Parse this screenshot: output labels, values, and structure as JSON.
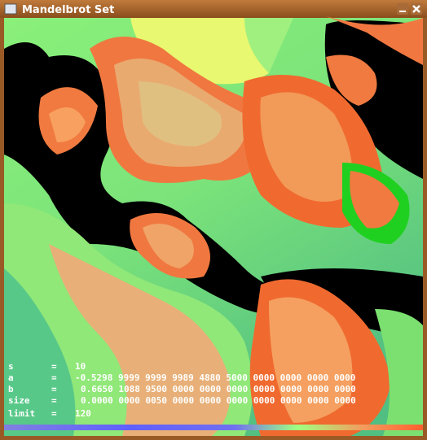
{
  "window": {
    "title": "Mandelbrot Set"
  },
  "info": [
    {
      "label": "s",
      "sep": "=",
      "value": "10"
    },
    {
      "label": "a",
      "sep": "=",
      "value": "-0.5298 9999 9999 9989 4880 5000 0000 0000 0000 0000"
    },
    {
      "label": "b",
      "sep": "=",
      "value": "0.6650 1088 9500 0000 0000 0000 0000 0000 0000 0000"
    },
    {
      "label": "size",
      "sep": "=",
      "value": "0.0000 0000 0050 0000 0000 0000 0000 0000 0000 0000"
    },
    {
      "label": "limit",
      "sep": "=",
      "value": "120"
    }
  ]
}
